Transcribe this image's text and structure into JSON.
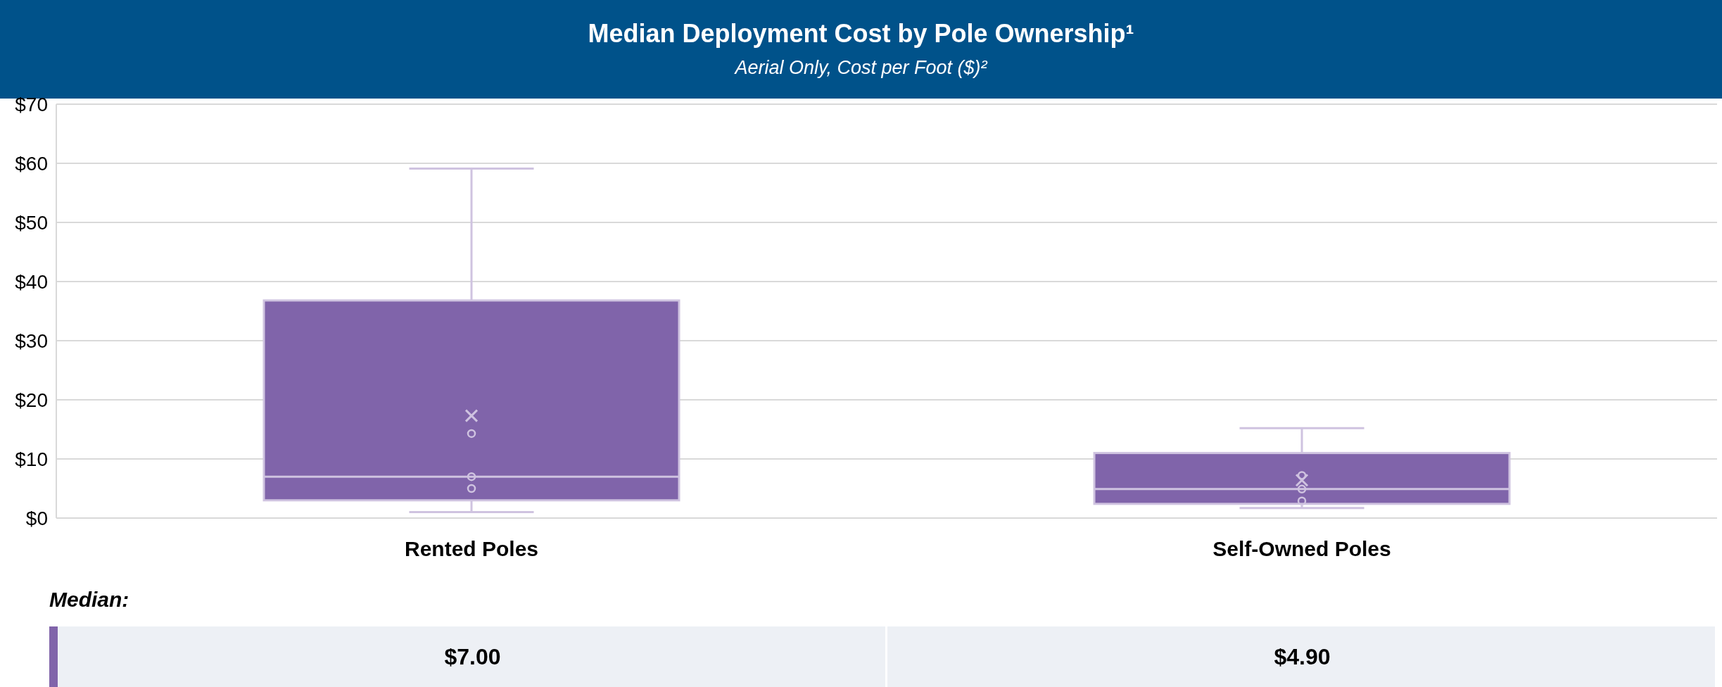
{
  "chart_data": {
    "type": "box",
    "title": "Median Deployment Cost by Pole Ownership¹",
    "subtitle": "Aerial Only, Cost per Foot ($)²",
    "categories": [
      "Rented Poles",
      "Self-Owned Poles"
    ],
    "series": [
      {
        "color": "#8064aa",
        "boxes": [
          {
            "low": 1.0,
            "q1": 3.0,
            "median": 7.0,
            "q3": 36.8,
            "high": 59.1,
            "mean": 17.3,
            "outliers": [
              14.3,
              7.0,
              5.0
            ]
          },
          {
            "low": 1.7,
            "q1": 2.4,
            "median": 4.9,
            "q3": 11.0,
            "high": 15.2,
            "mean": 6.4,
            "outliers": [
              7.2,
              4.9,
              2.9
            ]
          }
        ]
      }
    ],
    "ylim": [
      0,
      70
    ],
    "yticks": [
      {
        "value": 0,
        "label": "$0"
      },
      {
        "value": 10,
        "label": "$10"
      },
      {
        "value": 20,
        "label": "$20"
      },
      {
        "value": 30,
        "label": "$30"
      },
      {
        "value": 40,
        "label": "$40"
      },
      {
        "value": 50,
        "label": "$50"
      },
      {
        "value": 60,
        "label": "$60"
      },
      {
        "value": 70,
        "label": "$70"
      }
    ],
    "grid": "y",
    "annotations": [
      "Median:",
      "$7.00",
      "$4.90"
    ]
  }
}
